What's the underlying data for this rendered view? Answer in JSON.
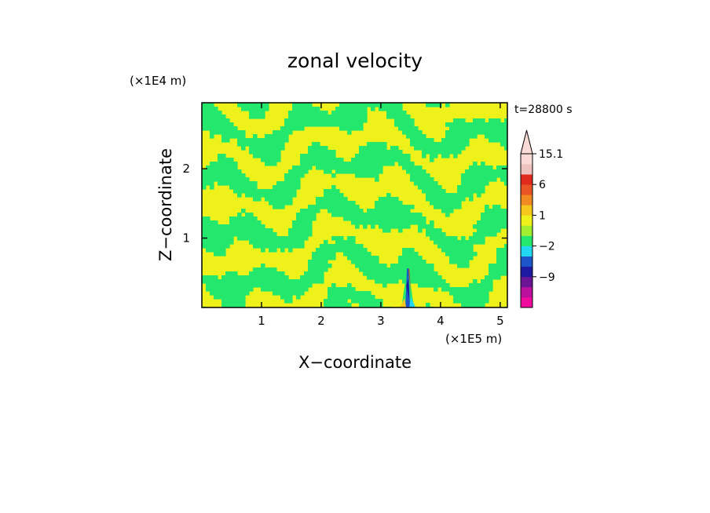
{
  "chart_data": {
    "type": "heatmap",
    "title": "zonal velocity",
    "xlabel": "X−coordinate",
    "ylabel": "Z−coordinate",
    "x_scale_label": "(×1E5 m)",
    "y_scale_label": "(×1E4 m)",
    "time_label": "t=28800 s",
    "xlim": [
      0,
      5.12
    ],
    "ylim": [
      0,
      2.95
    ],
    "x_ticks": [
      1,
      2,
      3,
      4,
      5
    ],
    "y_ticks": [
      1,
      2
    ],
    "x_tick_labels": [
      "1",
      "2",
      "3",
      "4",
      "5"
    ],
    "y_tick_labels": [
      "1",
      "2"
    ],
    "grid": false,
    "legend": "right colorbar",
    "colorbar": {
      "labels": [
        "15.1",
        "6",
        "1",
        "−2",
        "−9"
      ],
      "levels_bottom_to_top": [
        {
          "color": "#ee0b9e"
        },
        {
          "color": "#bb0f9e"
        },
        {
          "color": "#6b1496"
        },
        {
          "color": "#1d1aa1"
        },
        {
          "color": "#1c56c8"
        },
        {
          "color": "#22d7f1"
        },
        {
          "color": "#24e86d"
        },
        {
          "color": "#a1ef30"
        },
        {
          "color": "#eef21a"
        },
        {
          "color": "#f6c81d"
        },
        {
          "color": "#f18a21"
        },
        {
          "color": "#e85423"
        },
        {
          "color": "#e02a1e"
        },
        {
          "color": "#f0c2bd"
        },
        {
          "color": "#f9dad6"
        }
      ]
    },
    "fields": {
      "dominant_positive_color": "#eef21a",
      "dominant_negative_color": "#24e86d",
      "mountain_x": 3.45
    }
  }
}
